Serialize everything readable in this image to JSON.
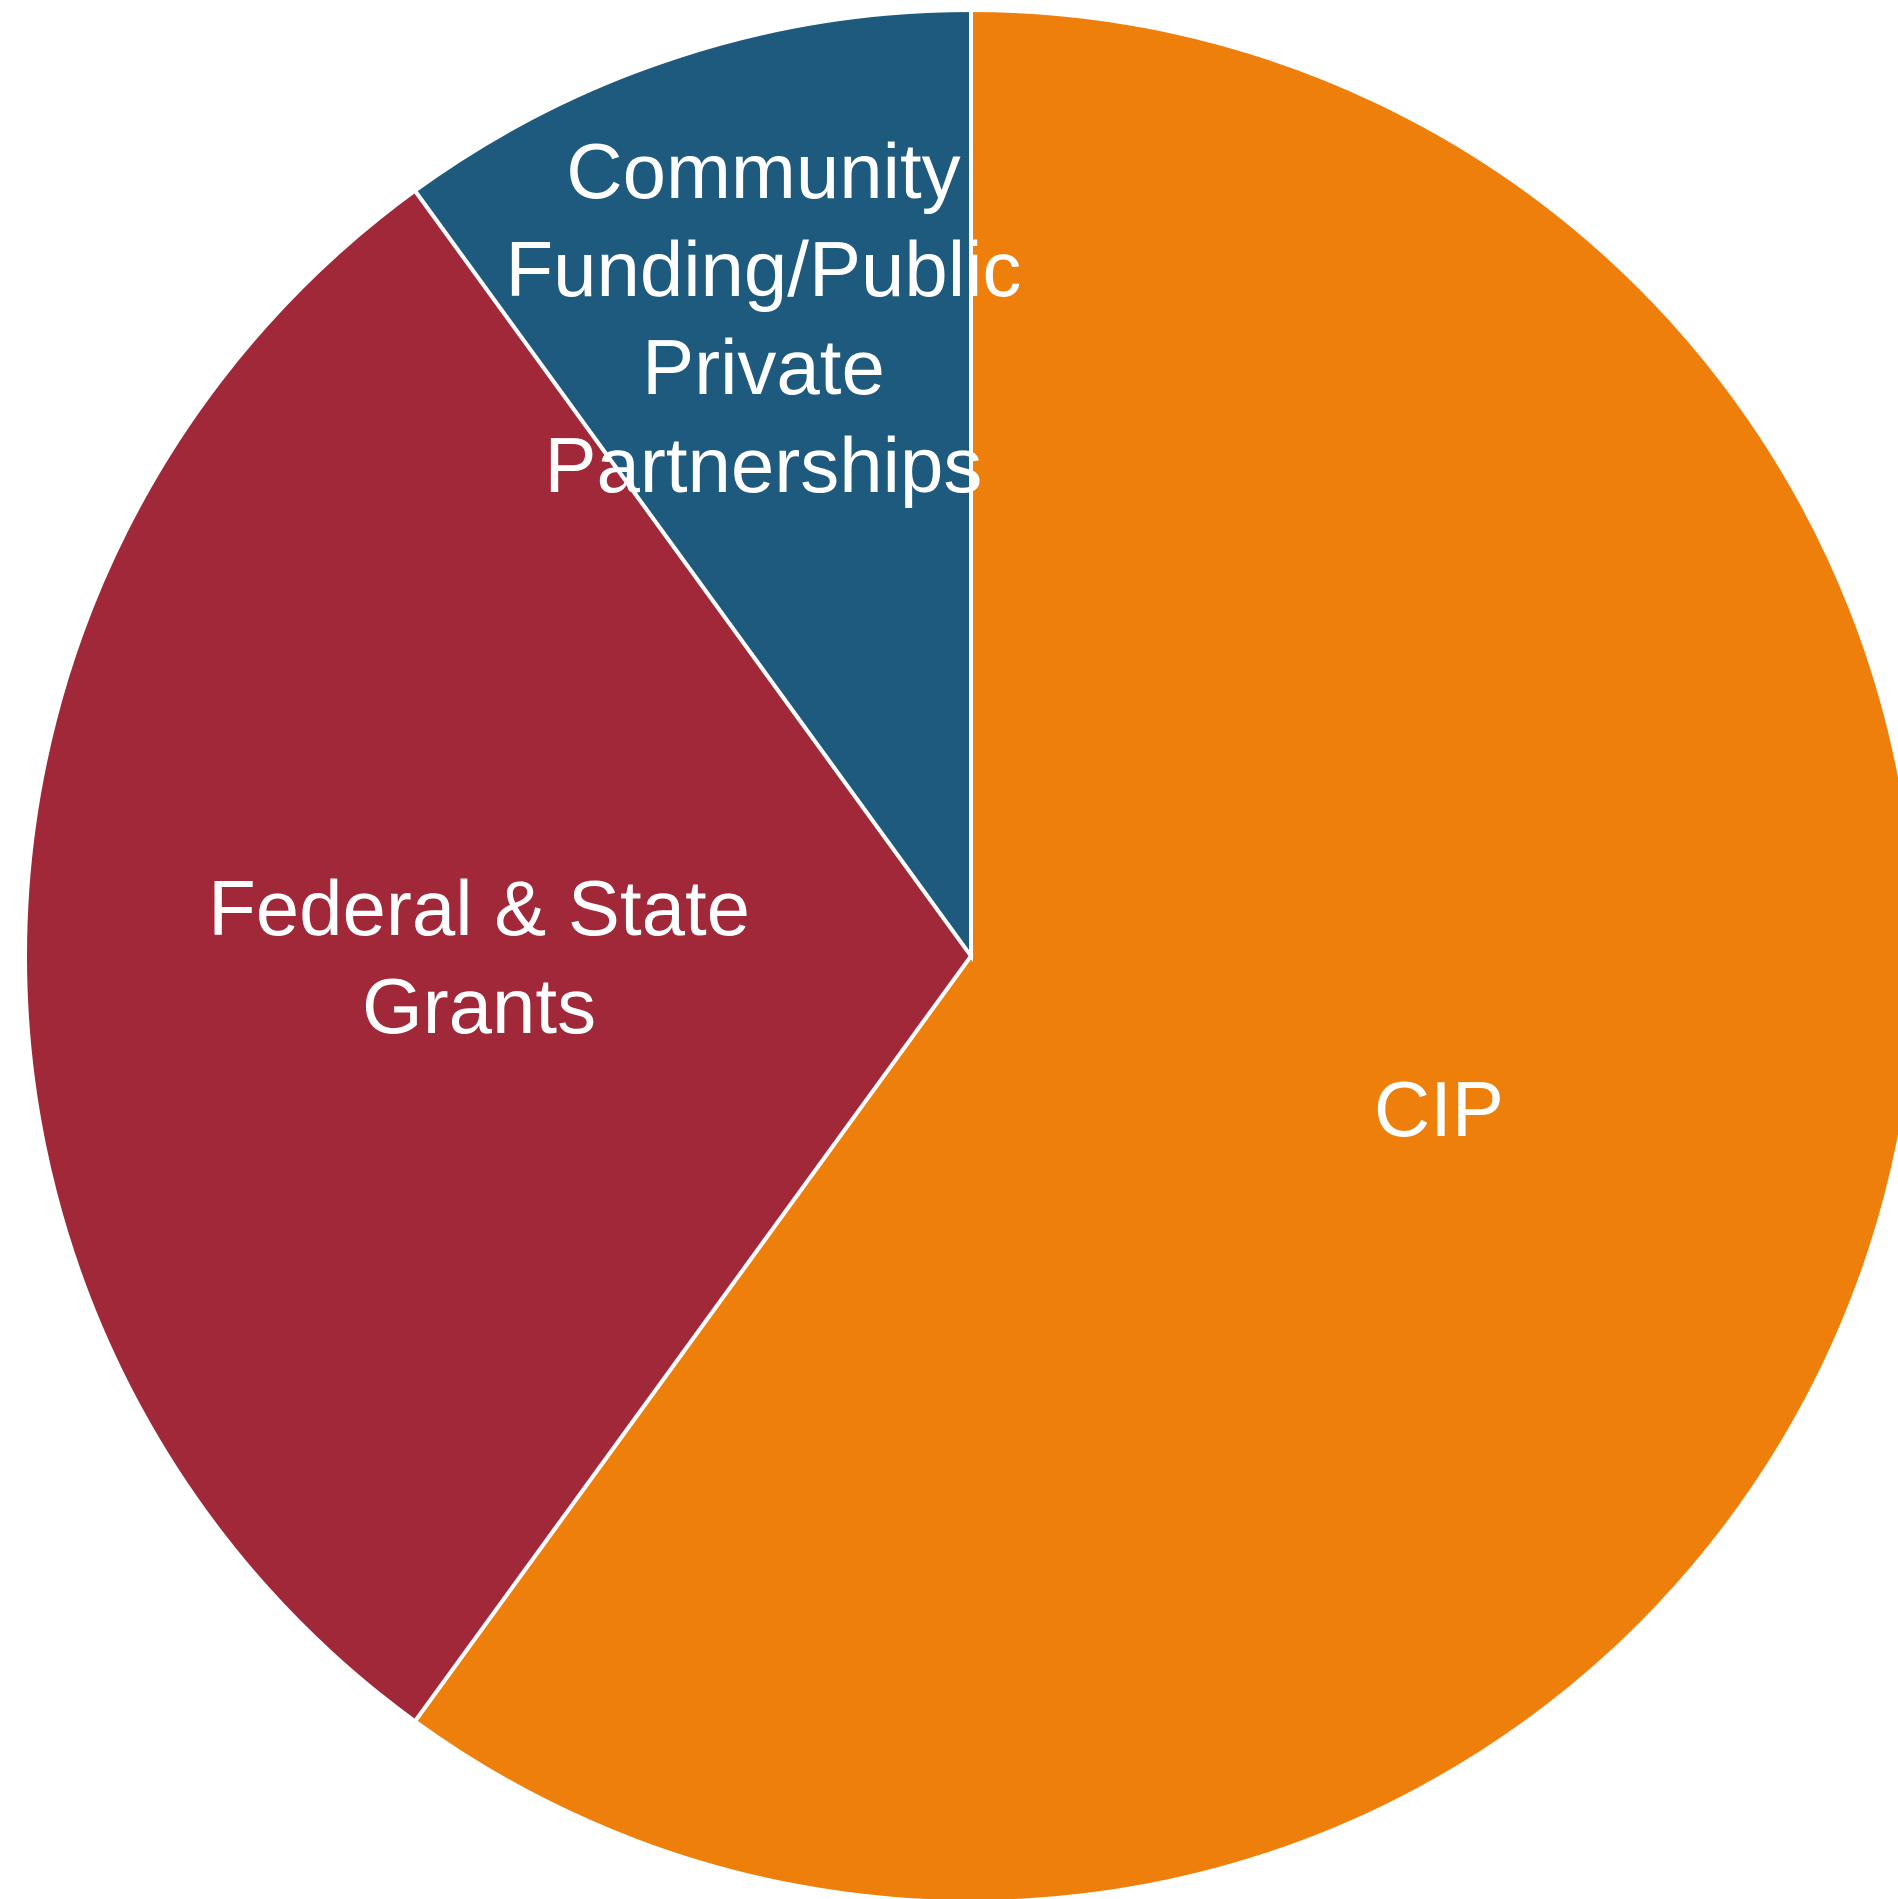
{
  "chart_data": {
    "type": "pie",
    "start_angle_deg": 0,
    "direction": "clockwise",
    "slices": [
      {
        "label": "CIP",
        "label_lines": [
          "CIP"
        ],
        "value": 60,
        "color": "#ee7f0a"
      },
      {
        "label": "Federal & State Grants",
        "label_lines": [
          "Federal & State",
          "Grants"
        ],
        "value": 30,
        "color": "#a02838"
      },
      {
        "label": "Community Funding/Public Private Partnerships",
        "label_lines": [
          "Community",
          "Funding/Public",
          "Private",
          "Partnerships"
        ],
        "value": 10,
        "color": "#1e5a7e"
      }
    ],
    "legend": "none",
    "title": ""
  }
}
